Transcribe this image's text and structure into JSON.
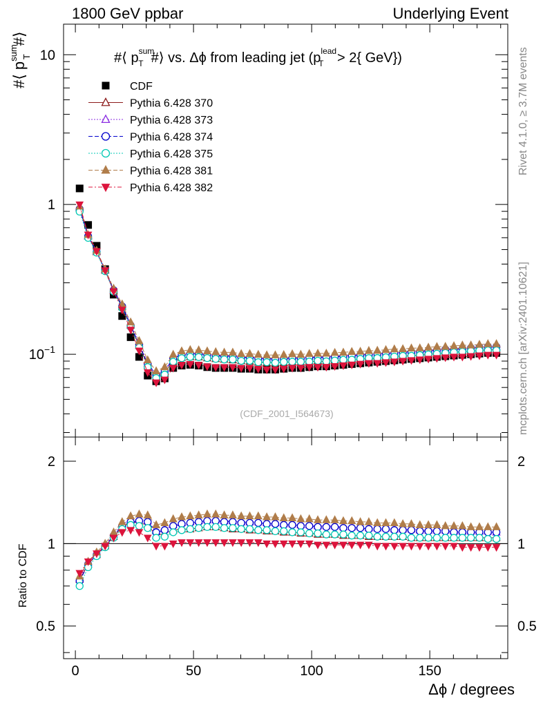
{
  "header": {
    "left": "1800 GeV ppbar",
    "right": "Underlying Event"
  },
  "side_labels": {
    "rivet": "Rivet 4.1.0, ≥ 3.7M events",
    "mcplots": "mcplots.cern.ch [arXiv:2401.10621]"
  },
  "chart_data": [
    {
      "type": "scatter",
      "panel": "main",
      "title_parts": {
        "prefix": "#⟨ p",
        "sup1": "sum",
        "sub1": "T",
        "mid": "#⟩ vs. Δϕ from leading jet  (p",
        "sup2": "lead",
        "sub2": "T",
        "suffix": " > 2{ GeV})"
      },
      "ylabel_parts": {
        "prefix": "#⟨ p",
        "sup": "sum",
        "sub": "T",
        "suffix": "#⟩"
      },
      "yscale": "log",
      "ylim": [
        0.028,
        16
      ],
      "xlim": [
        -5,
        183
      ],
      "ytick_labels": [
        {
          "value": 10,
          "label": "10"
        },
        {
          "value": 1,
          "label": "1"
        },
        {
          "value": 0.1,
          "label": "10",
          "sup": "−1"
        }
      ],
      "watermark": "(CDF_2001_I564673)",
      "x": [
        1.8,
        5.4,
        9,
        12.6,
        16.2,
        19.8,
        23.4,
        27,
        30.6,
        34.2,
        37.8,
        41.4,
        45,
        48.6,
        52.2,
        55.8,
        59.4,
        63,
        66.6,
        70.2,
        73.8,
        77.4,
        81,
        84.6,
        88.2,
        91.8,
        95.4,
        99,
        102.6,
        106.2,
        109.8,
        113.4,
        117,
        120.6,
        124.2,
        127.8,
        131.4,
        135,
        138.6,
        142.2,
        145.8,
        149.4,
        153,
        156.6,
        160.2,
        163.8,
        167.4,
        171,
        174.6,
        178.2
      ],
      "series": [
        {
          "name": "CDF",
          "marker": "square-filled",
          "color": "#000000",
          "line": "none",
          "values": [
            1.28,
            0.73,
            0.53,
            0.37,
            0.25,
            0.18,
            0.13,
            0.096,
            0.072,
            0.066,
            0.069,
            0.081,
            0.084,
            0.085,
            0.084,
            0.082,
            0.081,
            0.081,
            0.081,
            0.08,
            0.08,
            0.079,
            0.079,
            0.079,
            0.08,
            0.081,
            0.081,
            0.082,
            0.083,
            0.083,
            0.084,
            0.085,
            0.086,
            0.087,
            0.088,
            0.089,
            0.09,
            0.091,
            0.092,
            0.093,
            0.094,
            0.095,
            0.096,
            0.097,
            0.098,
            0.099,
            0.1,
            0.101,
            0.102,
            0.102
          ]
        },
        {
          "name": "Pythia 6.428 370",
          "marker": "triangle-up-open",
          "color": "#8b1a1a",
          "line": "solid",
          "ratio": [
            0.74,
            0.84,
            0.91,
            0.98,
            1.06,
            1.15,
            1.2,
            1.19,
            1.17,
            1.07,
            1.09,
            1.12,
            1.13,
            1.13,
            1.14,
            1.15,
            1.15,
            1.14,
            1.13,
            1.13,
            1.12,
            1.12,
            1.11,
            1.11,
            1.1,
            1.1,
            1.09,
            1.09,
            1.08,
            1.08,
            1.08,
            1.07,
            1.07,
            1.07,
            1.06,
            1.06,
            1.06,
            1.06,
            1.06,
            1.05,
            1.05,
            1.05,
            1.05,
            1.05,
            1.05,
            1.05,
            1.05,
            1.05,
            1.05,
            1.05
          ]
        },
        {
          "name": "Pythia 6.428 373",
          "marker": "triangle-up-open",
          "color": "#8a2be2",
          "line": "dotted",
          "ratio": [
            0.75,
            0.85,
            0.92,
            0.99,
            1.08,
            1.18,
            1.22,
            1.23,
            1.21,
            1.11,
            1.13,
            1.17,
            1.19,
            1.2,
            1.21,
            1.22,
            1.22,
            1.21,
            1.21,
            1.2,
            1.2,
            1.2,
            1.19,
            1.19,
            1.18,
            1.18,
            1.17,
            1.17,
            1.16,
            1.16,
            1.16,
            1.15,
            1.15,
            1.15,
            1.14,
            1.14,
            1.14,
            1.13,
            1.13,
            1.13,
            1.12,
            1.12,
            1.12,
            1.12,
            1.11,
            1.11,
            1.11,
            1.11,
            1.11,
            1.1
          ]
        },
        {
          "name": "Pythia 6.428 374",
          "marker": "circle-open",
          "color": "#0000cd",
          "line": "dashed",
          "ratio": [
            0.73,
            0.84,
            0.91,
            0.98,
            1.07,
            1.16,
            1.2,
            1.21,
            1.2,
            1.1,
            1.12,
            1.16,
            1.18,
            1.19,
            1.2,
            1.21,
            1.21,
            1.2,
            1.2,
            1.19,
            1.19,
            1.19,
            1.18,
            1.18,
            1.17,
            1.17,
            1.16,
            1.16,
            1.15,
            1.15,
            1.15,
            1.14,
            1.14,
            1.14,
            1.13,
            1.13,
            1.13,
            1.12,
            1.12,
            1.12,
            1.11,
            1.11,
            1.11,
            1.11,
            1.1,
            1.1,
            1.1,
            1.1,
            1.1,
            1.1
          ]
        },
        {
          "name": "Pythia 6.428 375",
          "marker": "circle-open",
          "color": "#00c8b4",
          "line": "dotted",
          "ratio": [
            0.7,
            0.82,
            0.9,
            0.97,
            1.05,
            1.13,
            1.17,
            1.16,
            1.14,
            1.05,
            1.06,
            1.1,
            1.12,
            1.13,
            1.14,
            1.15,
            1.15,
            1.14,
            1.14,
            1.13,
            1.13,
            1.12,
            1.12,
            1.11,
            1.11,
            1.1,
            1.1,
            1.09,
            1.09,
            1.08,
            1.08,
            1.08,
            1.07,
            1.07,
            1.07,
            1.06,
            1.06,
            1.06,
            1.06,
            1.05,
            1.05,
            1.05,
            1.05,
            1.05,
            1.05,
            1.05,
            1.05,
            1.05,
            1.04,
            1.04
          ]
        },
        {
          "name": "Pythia 6.428 381",
          "marker": "triangle-up-filled",
          "color": "#b07d4a",
          "line": "dashed",
          "ratio": [
            0.76,
            0.86,
            0.93,
            1.0,
            1.1,
            1.2,
            1.26,
            1.28,
            1.27,
            1.17,
            1.19,
            1.23,
            1.25,
            1.26,
            1.27,
            1.28,
            1.28,
            1.27,
            1.27,
            1.26,
            1.26,
            1.26,
            1.25,
            1.25,
            1.24,
            1.24,
            1.23,
            1.23,
            1.22,
            1.22,
            1.22,
            1.21,
            1.21,
            1.2,
            1.2,
            1.19,
            1.19,
            1.19,
            1.18,
            1.18,
            1.17,
            1.17,
            1.17,
            1.16,
            1.16,
            1.16,
            1.15,
            1.15,
            1.15,
            1.15
          ]
        },
        {
          "name": "Pythia 6.428 382",
          "marker": "triangle-down-filled",
          "color": "#dc143c",
          "line": "dashdot",
          "ratio": [
            0.78,
            0.86,
            0.92,
            0.98,
            1.05,
            1.1,
            1.12,
            1.1,
            1.05,
            0.98,
            0.98,
            1.0,
            1.01,
            1.01,
            1.01,
            1.01,
            1.01,
            1.01,
            1.01,
            1.01,
            1.01,
            1.01,
            1.0,
            1.0,
            1.0,
            1.0,
            1.0,
            1.0,
            0.99,
            0.99,
            0.99,
            0.99,
            0.99,
            0.99,
            0.99,
            0.98,
            0.98,
            0.98,
            0.98,
            0.98,
            0.98,
            0.98,
            0.98,
            0.98,
            0.98,
            0.97,
            0.97,
            0.97,
            0.97,
            0.97
          ]
        }
      ]
    },
    {
      "type": "scatter",
      "panel": "ratio",
      "ylabel": "Ratio to CDF",
      "yscale": "log",
      "ylim": [
        0.38,
        2.45
      ],
      "xlim": [
        -5,
        183
      ],
      "reference_line": 1,
      "ytick_labels": [
        {
          "value": 2,
          "label": "2"
        },
        {
          "value": 1,
          "label": "1"
        },
        {
          "value": 0.5,
          "label": "0.5"
        }
      ],
      "xtick_labels": [
        {
          "value": 0,
          "label": "0"
        },
        {
          "value": 50,
          "label": "50"
        },
        {
          "value": 100,
          "label": "100"
        },
        {
          "value": 150,
          "label": "150"
        }
      ],
      "xlabel_parts": {
        "symbol": "Δϕ",
        "rest": " / degrees"
      }
    }
  ]
}
